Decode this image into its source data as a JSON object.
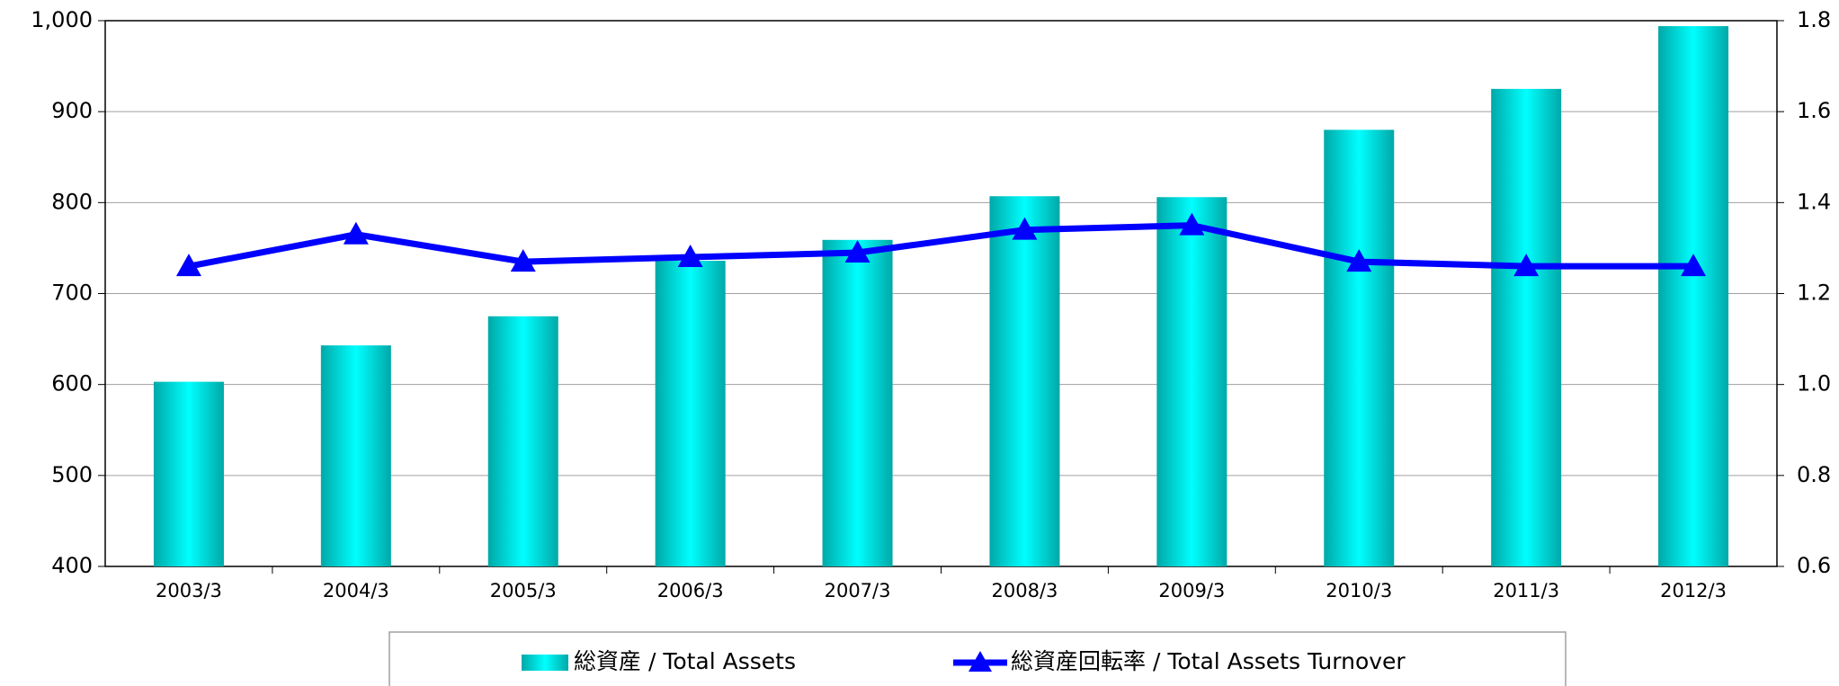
{
  "chart_data": {
    "type": "bar-line",
    "categories": [
      "2003/3",
      "2004/3",
      "2005/3",
      "2006/3",
      "2007/3",
      "2008/3",
      "2009/3",
      "2010/3",
      "2011/3",
      "2012/3"
    ],
    "series": [
      {
        "name": "総資産 / Total Assets",
        "type": "bar",
        "color": "#00e5e5",
        "values": [
          603,
          643,
          675,
          736,
          759,
          807,
          806,
          880,
          925,
          994
        ]
      },
      {
        "name": "総資産回転率 / Total Assets Turnover",
        "type": "line",
        "axis": "y2",
        "color": "#0000ff",
        "values": [
          1.26,
          1.33,
          1.27,
          1.28,
          1.29,
          1.34,
          1.35,
          1.27,
          1.26,
          1.26
        ]
      }
    ],
    "ylim": [
      400,
      1000
    ],
    "yticks": [
      400,
      500,
      600,
      700,
      800,
      900,
      {
        "value": 1000,
        "label": "1,000"
      }
    ],
    "y2lim": [
      0.6,
      1.8
    ],
    "y2ticks": [
      0.6,
      0.8,
      {
        "value": 1.0,
        "label": "1.0"
      },
      1.2,
      1.4,
      1.6,
      1.8
    ],
    "grid": true,
    "legend": "bottom"
  }
}
